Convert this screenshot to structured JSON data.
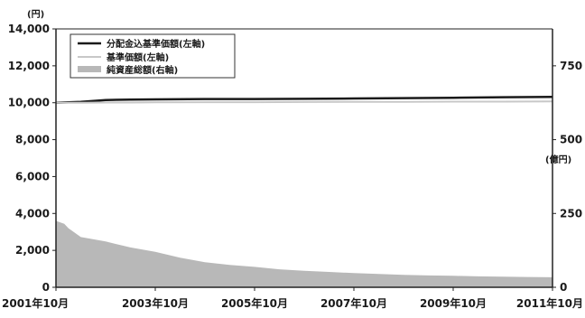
{
  "chart_data": {
    "type": "line",
    "x_ticks": [
      "2001年10月",
      "2003年10月",
      "2005年10月",
      "2007年10月",
      "2009年10月",
      "2011年10月"
    ],
    "x_range": [
      "2001-10",
      "2011-10"
    ],
    "y_left": {
      "unit": "(円)",
      "ticks": [
        "0",
        "2,000",
        "4,000",
        "6,000",
        "8,000",
        "10,000",
        "12,000",
        "14,000"
      ],
      "ylim": [
        0,
        14000
      ]
    },
    "y_right": {
      "unit": "(億円)",
      "ticks": [
        "0",
        "250",
        "500",
        "750"
      ],
      "ylim": [
        0,
        875
      ]
    },
    "legend": {
      "placement": "top-left",
      "boxed": true
    },
    "grid": false,
    "series": [
      {
        "name": "分配金込基準価額(左軸)",
        "axis": "left",
        "style": "line",
        "color": "#1a1a1a",
        "x": [
          "2001-10",
          "2002-04",
          "2002-10",
          "2003-04",
          "2003-10",
          "2004-10",
          "2005-10",
          "2006-10",
          "2007-10",
          "2008-10",
          "2009-10",
          "2010-10",
          "2011-10"
        ],
        "values": [
          10000,
          10050,
          10150,
          10170,
          10180,
          10200,
          10200,
          10210,
          10230,
          10250,
          10270,
          10300,
          10320
        ]
      },
      {
        "name": "基準価額(左軸)",
        "axis": "left",
        "style": "line",
        "color": "#c8c8c8",
        "x": [
          "2001-10",
          "2002-04",
          "2002-10",
          "2003-04",
          "2003-10",
          "2004-10",
          "2005-10",
          "2006-10",
          "2007-10",
          "2008-10",
          "2009-10",
          "2010-10",
          "2011-10"
        ],
        "values": [
          10000,
          10000,
          10010,
          10010,
          10020,
          10030,
          10030,
          10040,
          10050,
          10050,
          10060,
          10060,
          10070
        ]
      },
      {
        "name": "純資産総額(右軸)",
        "axis": "right",
        "style": "area",
        "color": "#b8b8b8",
        "x": [
          "2001-10",
          "2001-12",
          "2002-01",
          "2002-04",
          "2002-10",
          "2003-04",
          "2003-10",
          "2004-04",
          "2004-10",
          "2005-04",
          "2005-10",
          "2006-04",
          "2006-10",
          "2007-04",
          "2007-10",
          "2008-04",
          "2008-10",
          "2009-04",
          "2009-10",
          "2010-04",
          "2010-10",
          "2011-04",
          "2011-10"
        ],
        "values": [
          225,
          215,
          200,
          170,
          155,
          135,
          120,
          100,
          85,
          76,
          69,
          61,
          56,
          52,
          48,
          45,
          42,
          40,
          39,
          37,
          36,
          35,
          34
        ]
      }
    ]
  }
}
